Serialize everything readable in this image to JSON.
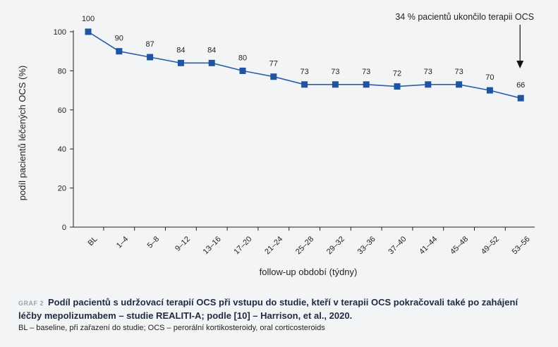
{
  "chart_data": {
    "type": "line",
    "categories": [
      "BL",
      "1–4",
      "5–8",
      "9–12",
      "13–16",
      "17–20",
      "21–24",
      "25–28",
      "29–32",
      "33–36",
      "37–40",
      "41–44",
      "45–48",
      "49–52",
      "53–56"
    ],
    "values": [
      100,
      90,
      87,
      84,
      84,
      80,
      77,
      73,
      73,
      73,
      72,
      73,
      73,
      70,
      66
    ],
    "data_labels": [
      "100",
      "90",
      "87",
      "84",
      "84",
      "80",
      "77",
      "73",
      "73",
      "73",
      "72",
      "73",
      "73",
      "70",
      "66"
    ],
    "xlabel": "follow-up období (týdny)",
    "ylabel": "podíl pacientů léčených OCS (%)",
    "ylim": [
      0,
      100
    ],
    "yticks": [
      0,
      20,
      40,
      60,
      80,
      100
    ],
    "grid": false,
    "annotation": "34 % pacientů ukončilo terapii OCS",
    "line_color": "#2a5ea8",
    "marker_color": "#1f54a0"
  },
  "caption": {
    "tag": "GRAF 2",
    "text": "Podíl pacientů s udržovací terapií OCS při vstupu do studie, kteří v terapii OCS pokračovali také po zahájení léčby mepolizumabem – studie REALITI-A; podle [10] – Harrison, et al., 2020."
  },
  "footnote": "BL – baseline, při zařazení do studie; OCS – perorální kortikosteroidy, oral corticosteroids"
}
